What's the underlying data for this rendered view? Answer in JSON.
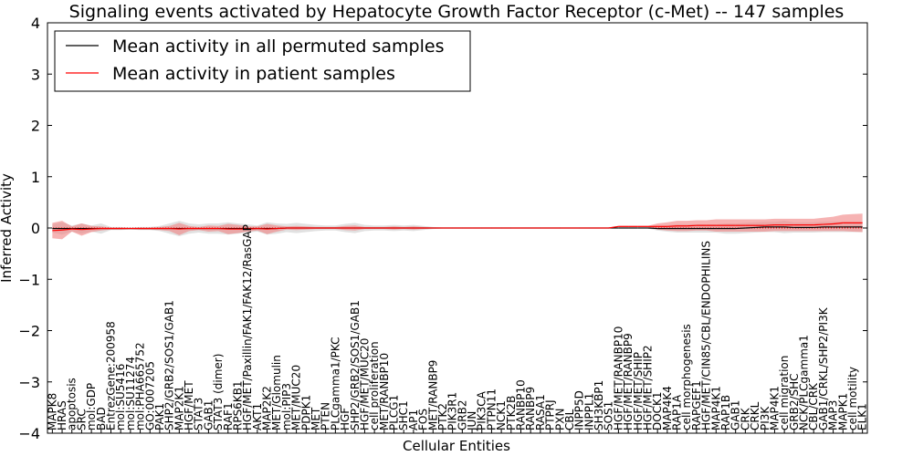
{
  "chart_data": {
    "type": "line",
    "title": "Signaling events activated by Hepatocyte Growth Factor Receptor (c-Met) -- 147 samples",
    "xlabel": "Cellular Entities",
    "ylabel": "Inferred Activity",
    "ylim": [
      -4,
      4
    ],
    "yticks": [
      -4,
      -3,
      -2,
      -1,
      0,
      1,
      2,
      3,
      4
    ],
    "ytick_labels": [
      "−4",
      "−3",
      "−2",
      "−1",
      "0",
      "1",
      "2",
      "3",
      "4"
    ],
    "legend": {
      "location": "top-left",
      "entries": [
        "Mean activity in all permuted samples",
        "Mean activity in patient samples"
      ]
    },
    "colors": {
      "permuted_line": "#000000",
      "patient_line": "#ff0000",
      "patient_band": "#f08080",
      "permuted_band": "#c8c8c8"
    },
    "categories": [
      "MAPK8",
      "HRAS",
      "apoptosis",
      "SRC",
      "mol:GDP",
      "BAD",
      "EntrezGene:200958",
      "mol:SU5416",
      "mol:SU11274",
      "mol:PHA665752",
      "GO:0007205",
      "PAK1",
      "SHP2/GRB2/SOS1/GAB1",
      "MAP2K1",
      "HGF/MET",
      "STAT3",
      "GAB1",
      "STAT3 (dimer)",
      "RAF1",
      "RPS6KB1",
      "HGF/MET/Paxillin/FAK1/FAK12/RasGAP",
      "AKT1",
      "MAP2K2",
      "MET/Glomulin",
      "mol:PIP3",
      "MET/MUC20",
      "PDPK1",
      "MET",
      "PTEN",
      "PLCgamma1/PKC",
      "HGF",
      "SHP2/GRB2/SOS1/GAB1",
      "HGF/MET/MUC20",
      "cell proliferation",
      "MET/RANBP10",
      "PLCG1",
      "SHC1",
      "AP1",
      "FOS",
      "MET/RANBP9",
      "PTK2",
      "PIK3R1",
      "GRB2",
      "JUN",
      "PIK3CA",
      "PTPN11",
      "NCK1",
      "PTK2B",
      "RANBP10",
      "RANBP9",
      "RASA1",
      "PTPRJ",
      "PXN",
      "CBL",
      "INPP5D",
      "INPPL1",
      "SH3KBP1",
      "SOS1",
      "HGF/MET/RANBP10",
      "HGF/MET/RANBP9",
      "HGF/MET/SHIP",
      "HGF/MET/SHIP2",
      "DOCK1",
      "MAP4K4",
      "RAP1A",
      "cell morphogenesis",
      "RAPGEF1",
      "HGF/MET/CIN85/CBL/ENDOPHILINS",
      "MAP4K1",
      "RAP1B",
      "GAB1",
      "CRK",
      "CRKL",
      "PI3K",
      "MAP4K1",
      "cell migration",
      "GRB2/SHC",
      "NCK/PLCgamma1",
      "CBL/CRK",
      "GAB1/CRKL/SHP2/PI3K",
      "MAP3",
      "MAPK1",
      "cell motility",
      "ELK1"
    ],
    "series": [
      {
        "name": "Mean activity in all permuted samples",
        "values": [
          -0.01,
          -0.01,
          -0.01,
          -0.01,
          -0.01,
          -0.01,
          -0.01,
          -0.01,
          -0.01,
          -0.01,
          -0.01,
          -0.01,
          -0.01,
          -0.01,
          -0.01,
          -0.01,
          -0.01,
          -0.01,
          -0.01,
          -0.01,
          -0.01,
          -0.01,
          -0.01,
          -0.01,
          0.0,
          0.0,
          0.0,
          0.0,
          0.0,
          0.0,
          0.0,
          0.0,
          0.0,
          0.0,
          0.0,
          0.0,
          0.0,
          0.0,
          0.0,
          0.0,
          0.0,
          0.0,
          0.0,
          0.0,
          0.0,
          0.0,
          0.0,
          0.0,
          0.0,
          0.0,
          0.0,
          0.0,
          0.0,
          0.0,
          0.0,
          0.0,
          0.0,
          0.0,
          0.0,
          0.0,
          0.0,
          0.0,
          -0.01,
          -0.01,
          -0.01,
          -0.01,
          -0.01,
          -0.01,
          -0.01,
          -0.01,
          -0.01,
          0.0,
          0.01,
          0.02,
          0.02,
          0.02,
          0.01,
          0.01,
          0.01,
          0.02,
          0.02,
          0.02,
          0.02,
          0.02
        ]
      },
      {
        "name": "Mean activity in patient samples",
        "values": [
          -0.05,
          -0.04,
          -0.02,
          -0.03,
          -0.02,
          -0.01,
          -0.01,
          -0.01,
          -0.01,
          -0.01,
          -0.01,
          -0.01,
          -0.01,
          -0.02,
          -0.01,
          -0.01,
          -0.01,
          -0.01,
          -0.02,
          -0.02,
          -0.02,
          -0.01,
          -0.02,
          -0.01,
          0.0,
          0.0,
          0.0,
          0.0,
          0.0,
          0.0,
          0.0,
          0.0,
          0.0,
          0.0,
          0.0,
          0.0,
          0.0,
          0.0,
          0.0,
          0.0,
          0.0,
          0.0,
          0.0,
          0.0,
          0.0,
          0.0,
          0.0,
          0.0,
          0.0,
          0.0,
          0.0,
          0.0,
          0.0,
          0.0,
          0.0,
          0.0,
          0.0,
          0.0,
          0.03,
          0.03,
          0.03,
          0.03,
          0.03,
          0.03,
          0.04,
          0.04,
          0.05,
          0.05,
          0.05,
          0.05,
          0.05,
          0.05,
          0.05,
          0.05,
          0.06,
          0.06,
          0.06,
          0.06,
          0.06,
          0.07,
          0.08,
          0.1,
          0.1,
          0.1
        ]
      }
    ],
    "patient_band_halfwidth": [
      0.15,
      0.18,
      0.05,
      0.12,
      0.06,
      0.04,
      0.02,
      0.02,
      0.01,
      0.02,
      0.02,
      0.03,
      0.05,
      0.12,
      0.05,
      0.03,
      0.06,
      0.05,
      0.1,
      0.08,
      0.05,
      0.04,
      0.1,
      0.06,
      0.03,
      0.04,
      0.03,
      0.02,
      0.02,
      0.02,
      0.04,
      0.05,
      0.02,
      0.02,
      0.02,
      0.03,
      0.02,
      0.03,
      0.02,
      0.01,
      0.01,
      0.01,
      0.01,
      0.01,
      0.01,
      0.01,
      0.01,
      0.01,
      0.01,
      0.01,
      0.01,
      0.01,
      0.01,
      0.01,
      0.01,
      0.01,
      0.01,
      0.01,
      0.01,
      0.01,
      0.01,
      0.01,
      0.06,
      0.08,
      0.1,
      0.1,
      0.1,
      0.1,
      0.12,
      0.12,
      0.12,
      0.12,
      0.12,
      0.12,
      0.12,
      0.12,
      0.12,
      0.12,
      0.12,
      0.13,
      0.14,
      0.16,
      0.17,
      0.18
    ],
    "permuted_band_halfwidth": [
      0.08,
      0.12,
      0.06,
      0.1,
      0.06,
      0.1,
      0.03,
      0.03,
      0.02,
      0.03,
      0.03,
      0.05,
      0.1,
      0.15,
      0.1,
      0.08,
      0.1,
      0.1,
      0.12,
      0.1,
      0.08,
      0.06,
      0.12,
      0.1,
      0.08,
      0.1,
      0.08,
      0.06,
      0.05,
      0.05,
      0.08,
      0.1,
      0.06,
      0.05,
      0.05,
      0.06,
      0.05,
      0.06,
      0.04,
      0.02,
      0.01,
      0.01,
      0.01,
      0.01,
      0.01,
      0.01,
      0.01,
      0.01,
      0.01,
      0.01,
      0.01,
      0.01,
      0.01,
      0.01,
      0.01,
      0.01,
      0.01,
      0.01,
      0.01,
      0.01,
      0.01,
      0.01,
      0.04,
      0.06,
      0.08,
      0.08,
      0.08,
      0.08,
      0.08,
      0.1,
      0.1,
      0.1,
      0.1,
      0.1,
      0.1,
      0.12,
      0.1,
      0.1,
      0.1,
      0.1,
      0.1,
      0.1,
      0.1,
      0.1
    ]
  }
}
